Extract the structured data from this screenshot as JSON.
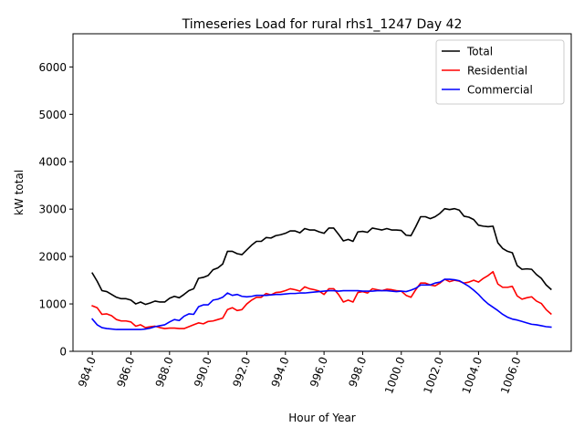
{
  "chart_data": {
    "type": "line",
    "title": "Timeseries Load for rural rhs1_1247  Day 42",
    "xlabel": "Hour of Year",
    "ylabel": "kW total",
    "xlim": [
      983.0,
      1008.8
    ],
    "ylim": [
      0,
      6700
    ],
    "x_ticks": [
      984,
      986,
      988,
      990,
      992,
      994,
      996,
      998,
      1000,
      1002,
      1004,
      1006
    ],
    "x_tick_labels": [
      "984.0",
      "986.0",
      "988.0",
      "990.0",
      "992.0",
      "994.0",
      "996.0",
      "998.0",
      "1000.0",
      "1002.0",
      "1004.0",
      "1006.0"
    ],
    "y_ticks": [
      0,
      1000,
      2000,
      3000,
      4000,
      5000,
      6000
    ],
    "y_tick_labels": [
      "0",
      "1000",
      "2000",
      "3000",
      "4000",
      "5000",
      "6000"
    ],
    "legend_position": "top-right",
    "x_start": 984.0,
    "x_step": 0.25,
    "series": [
      {
        "name": "Total",
        "color": "#000000",
        "values": [
          1650,
          1480,
          1280,
          1260,
          1200,
          1140,
          1110,
          1110,
          1080,
          1000,
          1040,
          990,
          1020,
          1060,
          1040,
          1040,
          1120,
          1160,
          1130,
          1200,
          1280,
          1320,
          1540,
          1560,
          1600,
          1720,
          1760,
          1840,
          2110,
          2110,
          2060,
          2040,
          2140,
          2240,
          2320,
          2320,
          2400,
          2390,
          2440,
          2460,
          2490,
          2540,
          2540,
          2500,
          2590,
          2560,
          2560,
          2520,
          2490,
          2600,
          2600,
          2470,
          2330,
          2360,
          2320,
          2520,
          2530,
          2510,
          2600,
          2580,
          2560,
          2590,
          2560,
          2560,
          2550,
          2450,
          2440,
          2630,
          2840,
          2840,
          2800,
          2840,
          2910,
          3010,
          2990,
          3010,
          2980,
          2850,
          2830,
          2780,
          2660,
          2640,
          2630,
          2640,
          2290,
          2170,
          2110,
          2080,
          1810,
          1730,
          1740,
          1730,
          1620,
          1540,
          1400,
          1310
        ]
      },
      {
        "name": "Residential",
        "color": "#ff0000",
        "values": [
          960,
          920,
          780,
          790,
          750,
          670,
          640,
          640,
          620,
          530,
          560,
          500,
          520,
          530,
          500,
          480,
          490,
          490,
          480,
          480,
          520,
          560,
          600,
          580,
          630,
          640,
          670,
          700,
          880,
          920,
          860,
          880,
          1000,
          1080,
          1140,
          1140,
          1220,
          1190,
          1240,
          1250,
          1280,
          1320,
          1300,
          1270,
          1360,
          1320,
          1300,
          1270,
          1200,
          1320,
          1320,
          1200,
          1040,
          1080,
          1040,
          1240,
          1260,
          1230,
          1320,
          1300,
          1280,
          1310,
          1300,
          1280,
          1270,
          1180,
          1140,
          1300,
          1440,
          1440,
          1400,
          1380,
          1440,
          1520,
          1470,
          1500,
          1480,
          1440,
          1460,
          1500,
          1460,
          1540,
          1600,
          1680,
          1420,
          1350,
          1350,
          1370,
          1170,
          1100,
          1130,
          1150,
          1060,
          1010,
          880,
          790
        ]
      },
      {
        "name": "Commercial",
        "color": "#0000ff",
        "values": [
          680,
          560,
          500,
          480,
          470,
          460,
          460,
          460,
          460,
          460,
          460,
          470,
          490,
          520,
          540,
          560,
          620,
          670,
          650,
          740,
          790,
          780,
          940,
          980,
          980,
          1080,
          1100,
          1140,
          1230,
          1180,
          1200,
          1160,
          1150,
          1160,
          1180,
          1180,
          1180,
          1190,
          1200,
          1200,
          1210,
          1220,
          1220,
          1230,
          1230,
          1240,
          1250,
          1260,
          1270,
          1280,
          1280,
          1270,
          1280,
          1280,
          1280,
          1280,
          1270,
          1270,
          1270,
          1280,
          1280,
          1280,
          1270,
          1260,
          1270,
          1260,
          1290,
          1330,
          1400,
          1400,
          1400,
          1440,
          1460,
          1520,
          1520,
          1510,
          1490,
          1430,
          1370,
          1290,
          1200,
          1090,
          1000,
          930,
          860,
          780,
          720,
          680,
          660,
          630,
          600,
          570,
          560,
          540,
          520,
          510
        ]
      }
    ]
  }
}
